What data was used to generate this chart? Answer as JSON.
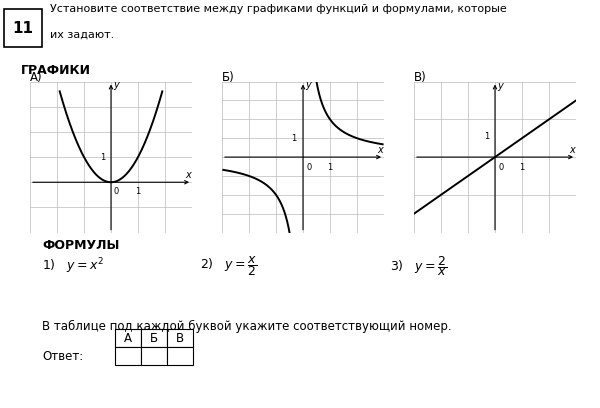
{
  "title_num": "11",
  "title_line1": "Установите соответствие между графиками функций и формулами, которые",
  "title_line2": "их задают.",
  "grafiki_label": "ГРАФИКИ",
  "formula_label": "ФОРМУЛЫ",
  "graph_labels": [
    "А)",
    "Б)",
    "В)"
  ],
  "table_text": "В таблице под каждой буквой укажите соответствующий номер.",
  "answer_label": "Ответ:",
  "table_headers": [
    "А",
    "Б",
    "В"
  ],
  "bg_color": "#ffffff",
  "grid_color": "#bbbbbb",
  "curve_color": "#000000",
  "graph_A_xlim": [
    -3,
    3
  ],
  "graph_A_ylim": [
    -2,
    4
  ],
  "graph_B_xlim": [
    -3,
    3
  ],
  "graph_B_ylim": [
    -4,
    4
  ],
  "graph_C_xlim": [
    -3,
    3
  ],
  "graph_C_ylim": [
    -2,
    2
  ]
}
